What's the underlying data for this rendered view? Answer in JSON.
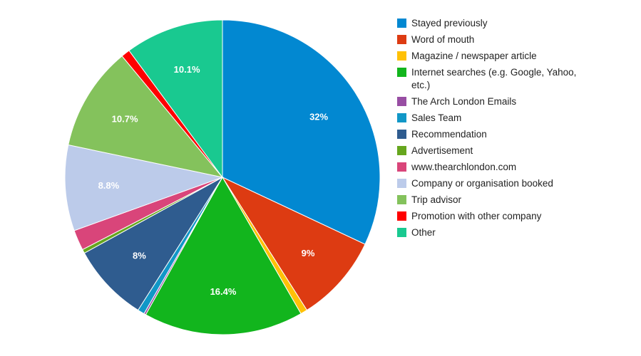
{
  "chart_data": {
    "type": "pie",
    "legend_position": "right",
    "slices": [
      {
        "name": "Stayed previously",
        "value": 32,
        "label": "32%",
        "color": "#0288d1"
      },
      {
        "name": "Word of mouth",
        "value": 9,
        "label": "9%",
        "color": "#dd3b12"
      },
      {
        "name": "Magazine / newspaper article",
        "value": 0.7,
        "label": "",
        "color": "#ffc107"
      },
      {
        "name": "Internet searches (e.g. Google, Yahoo, etc.)",
        "value": 16.4,
        "label": "16.4%",
        "color": "#12b51d"
      },
      {
        "name": "The Arch London Emails",
        "value": 0.2,
        "label": "",
        "color": "#984ea3"
      },
      {
        "name": "Sales Team",
        "value": 0.7,
        "label": "",
        "color": "#1197c7"
      },
      {
        "name": "Recommendation",
        "value": 8,
        "label": "8%",
        "color": "#2f5c8f"
      },
      {
        "name": "Advertisement",
        "value": 0.4,
        "label": "",
        "color": "#66a61e"
      },
      {
        "name": "www.thearchlondon.com",
        "value": 2.1,
        "label": "",
        "color": "#d9457a"
      },
      {
        "name": "Company or organisation booked",
        "value": 8.8,
        "label": "8.8%",
        "color": "#bccbea"
      },
      {
        "name": "Trip advisor",
        "value": 10.7,
        "label": "10.7%",
        "color": "#84c25c"
      },
      {
        "name": "Promotion with other company",
        "value": 0.9,
        "label": "",
        "color": "#ff0000"
      },
      {
        "name": "Other",
        "value": 10.1,
        "label": "10.1%",
        "color": "#19c990"
      }
    ]
  }
}
